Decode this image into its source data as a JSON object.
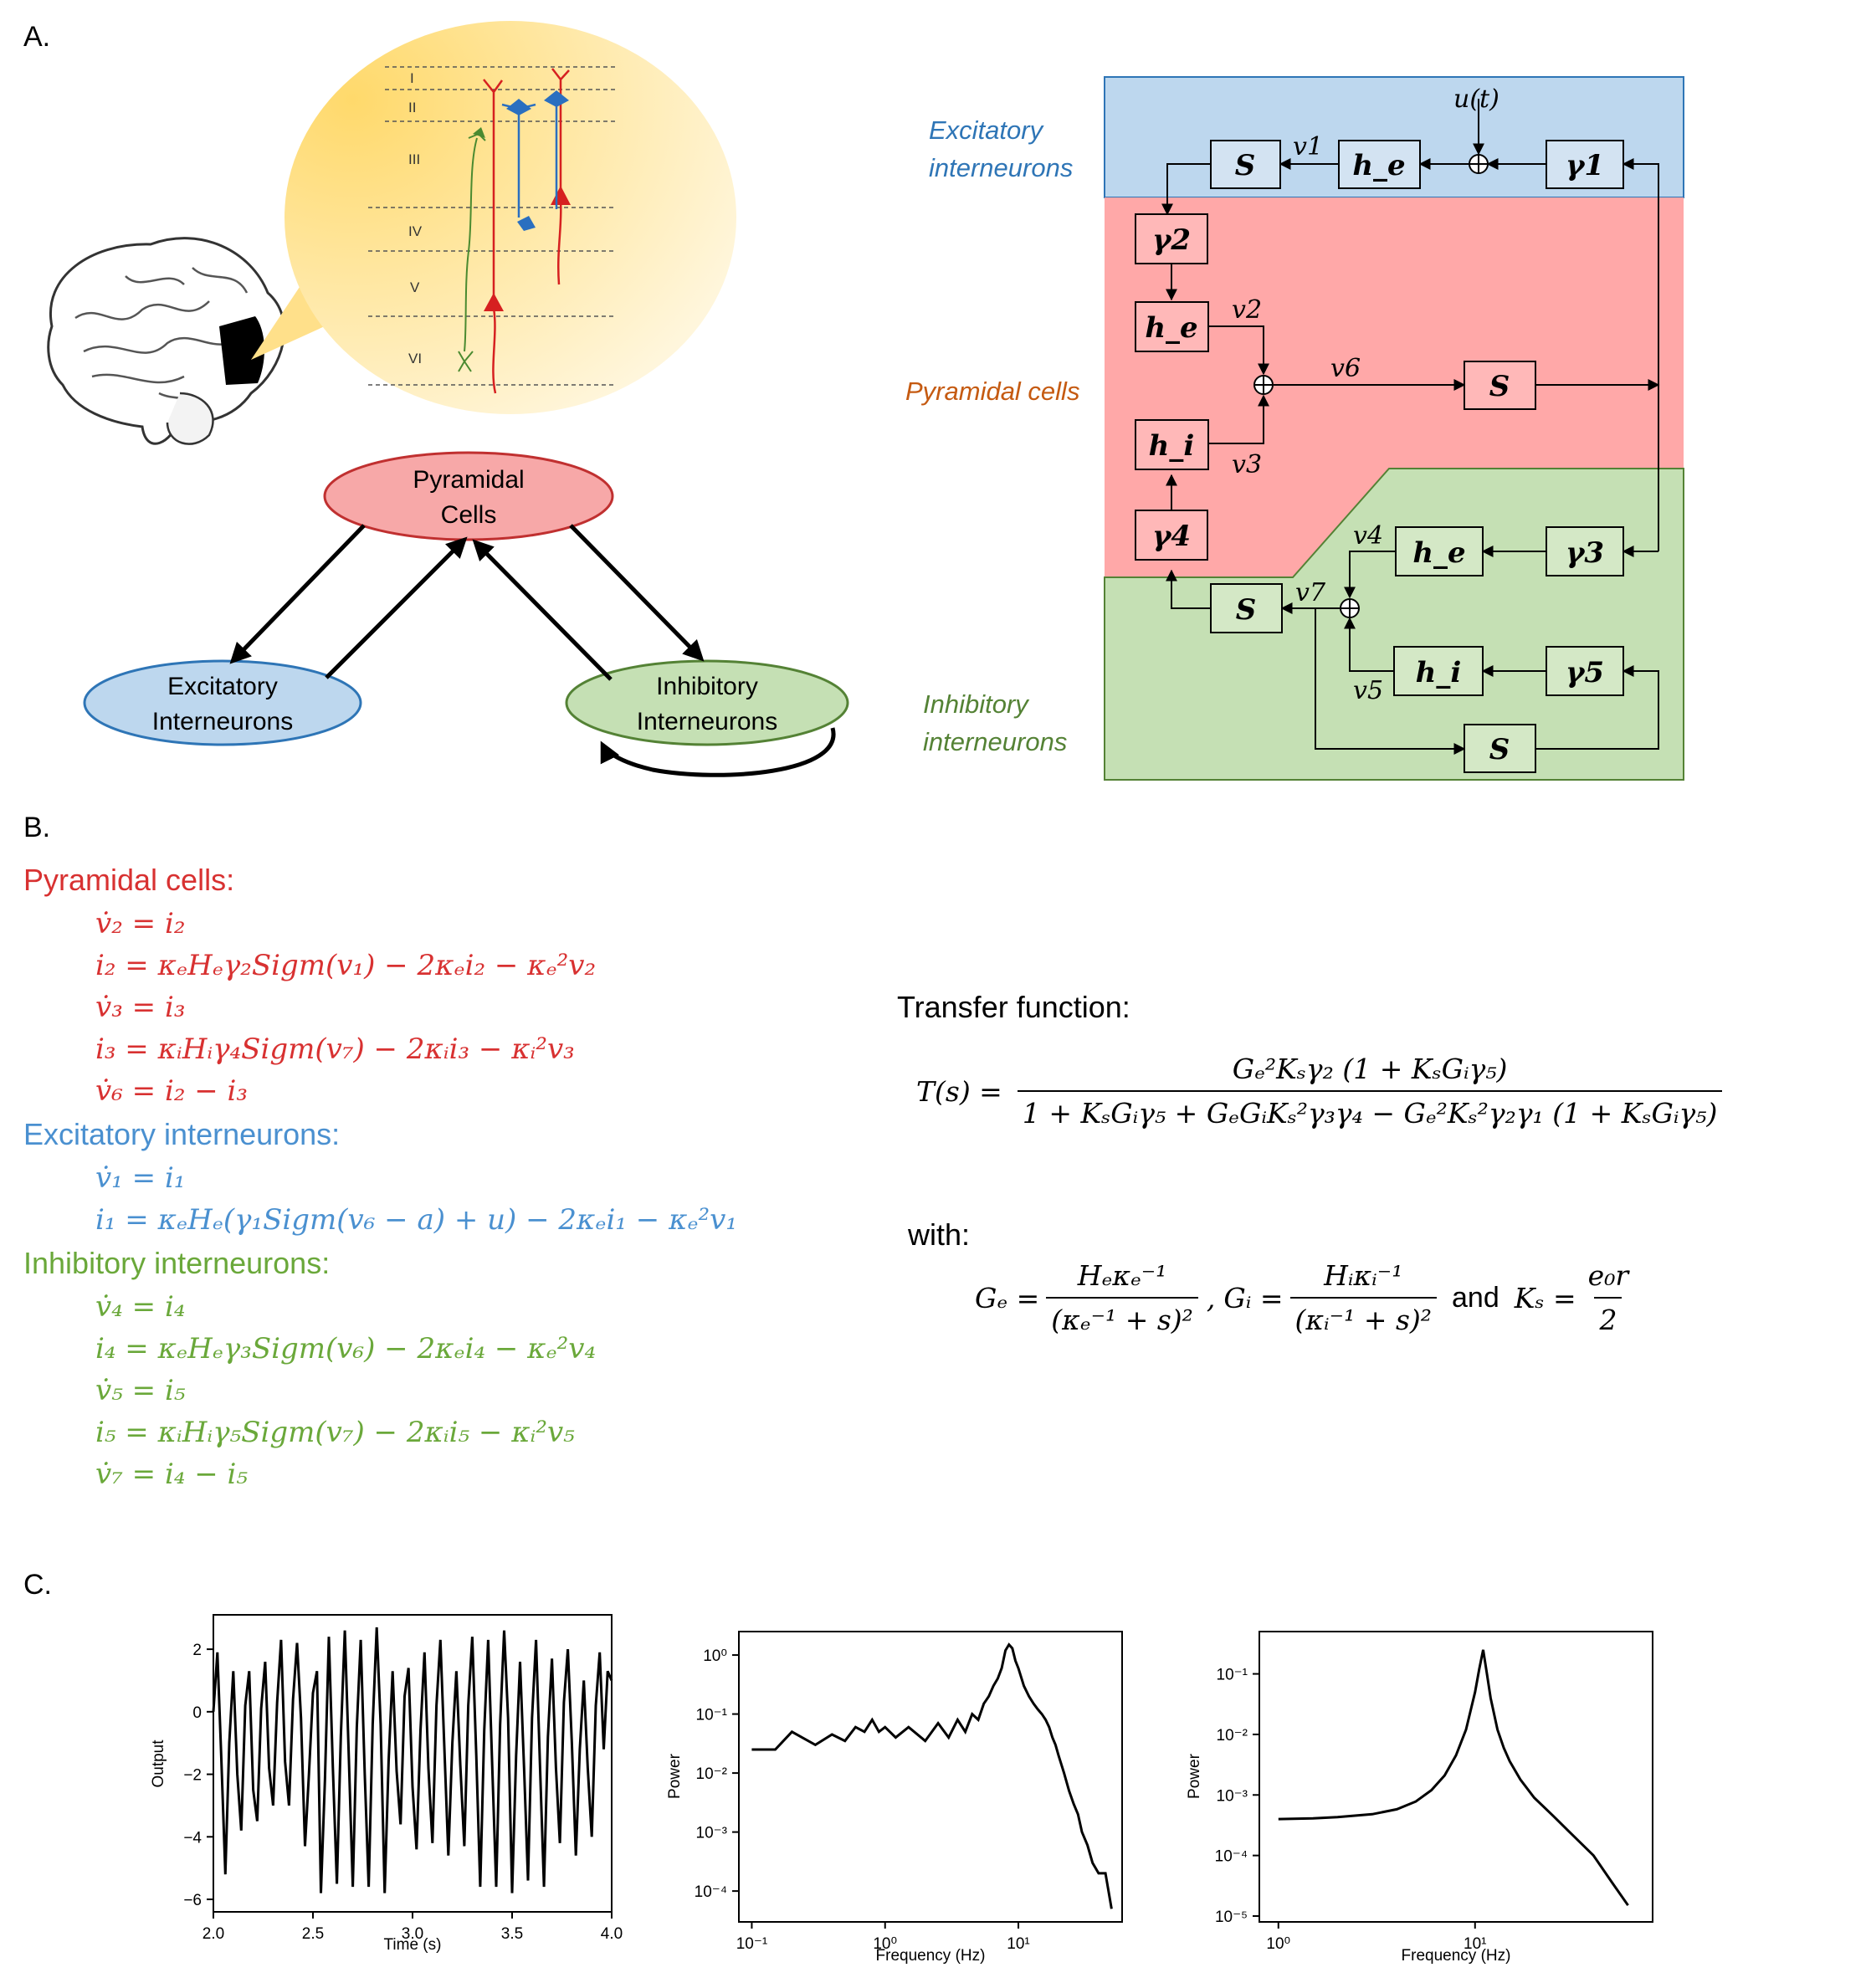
{
  "panel_labels": {
    "a": "A.",
    "b": "B.",
    "c": "C."
  },
  "cortex_layers": [
    "I",
    "II",
    "III",
    "IV",
    "V",
    "VI"
  ],
  "network": {
    "pyramidal": "Pyramidal Cells",
    "pyramidal_line1": "Pyramidal",
    "pyramidal_line2": "Cells",
    "excitatory_line1": "Excitatory",
    "excitatory_line2": "Interneurons",
    "inhibitory_line1": "Inhibitory",
    "inhibitory_line2": "Interneurons"
  },
  "block_diagram": {
    "excitatory_label_1": "Excitatory",
    "excitatory_label_2": "interneurons",
    "pyramidal_label": "Pyramidal cells",
    "inhibitory_label_1": "Inhibitory",
    "inhibitory_label_2": "interneurons",
    "input_label": "u(t)",
    "blocks": {
      "s1": "S",
      "he1": "h_e",
      "g1": "γ1",
      "g2": "γ2",
      "he2": "h_e",
      "hi1": "h_i",
      "g4": "γ4",
      "s2": "S",
      "he3": "h_e",
      "g3": "γ3",
      "s3": "S",
      "hi2": "h_i",
      "g5": "γ5",
      "s4": "S"
    },
    "signals": {
      "v1": "v1",
      "v2": "v2",
      "v3": "v3",
      "v4": "v4",
      "v5": "v5",
      "v6": "v6",
      "v7": "v7"
    },
    "colors": {
      "excitatory": "#bdd7ee",
      "pyramidal": "#ffa8a8",
      "inhibitory": "#c5e0b4"
    }
  },
  "equations": {
    "pyramidal_header": "Pyramidal cells:",
    "pyramidal": [
      "v̇₂ = i₂",
      "i₂ = κₑHₑγ₂Sigm(v₁) − 2κₑi₂ − κₑ²v₂",
      "v̇₃ = i₃",
      "i₃ = κᵢHᵢγ₄Sigm(v₇) − 2κᵢi₃ − κᵢ²v₃",
      "v̇₆ = i₂ − i₃"
    ],
    "excitatory_header": "Excitatory interneurons:",
    "excitatory": [
      "v̇₁ = i₁",
      "i₁ = κₑHₑ(γ₁Sigm(v₆ − a) + u) − 2κₑi₁ − κₑ²v₁"
    ],
    "inhibitory_header": "Inhibitory interneurons:",
    "inhibitory": [
      "v̇₄ = i₄",
      "i₄ = κₑHₑγ₃Sigm(v₆) − 2κₑi₄ − κₑ²v₄",
      "v̇₅ = i₅",
      "i₅ = κᵢHᵢγ₅Sigm(v₇) − 2κᵢi₅ − κᵢ²v₅",
      "v̇₇ = i₄ − i₅"
    ]
  },
  "transfer": {
    "label": "Transfer function:",
    "lhs": "T(s) =",
    "numerator": "Gₑ²Kₛγ₂ (1 + KₛGᵢγ₅)",
    "denominator": "1 + KₛGᵢγ₅ + GₑGᵢKₛ²γ₃γ₄ − Gₑ²Kₛ²γ₂γ₁ (1 + KₛGᵢγ₅)",
    "with_label": "with:",
    "ge_lhs": "Gₑ =",
    "ge_num": "Hₑκₑ⁻¹",
    "ge_den": "(κₑ⁻¹ + s)²",
    "gi_lhs": "Gᵢ =",
    "gi_num": "Hᵢκᵢ⁻¹",
    "gi_den": "(κᵢ⁻¹ + s)²",
    "and": "and",
    "ks_lhs": "Kₛ =",
    "ks_num": "e₀r",
    "ks_den": "2"
  },
  "chart_data": [
    {
      "type": "line",
      "xlabel": "Time (s)",
      "ylabel": "Output",
      "xlim": [
        2.0,
        4.0
      ],
      "ylim": [
        -6.4,
        3.1
      ],
      "xticks": [
        "2.0",
        "2.5",
        "3.0",
        "3.5",
        "4.0"
      ],
      "yticks": [
        "2",
        "0",
        "−2",
        "−4",
        "−6"
      ],
      "series": [
        {
          "x": [
            2.0,
            2.02,
            2.04,
            2.06,
            2.08,
            2.1,
            2.12,
            2.14,
            2.16,
            2.18,
            2.2,
            2.22,
            2.24,
            2.26,
            2.28,
            2.3,
            2.32,
            2.34,
            2.36,
            2.38,
            2.4,
            2.42,
            2.44,
            2.46,
            2.48,
            2.5,
            2.52,
            2.54,
            2.56,
            2.58,
            2.6,
            2.62,
            2.64,
            2.66,
            2.68,
            2.7,
            2.72,
            2.74,
            2.76,
            2.78,
            2.8,
            2.82,
            2.84,
            2.86,
            2.88,
            2.9,
            2.92,
            2.94,
            2.96,
            2.98,
            3.0,
            3.02,
            3.04,
            3.06,
            3.08,
            3.1,
            3.12,
            3.14,
            3.16,
            3.18,
            3.2,
            3.22,
            3.24,
            3.26,
            3.28,
            3.3,
            3.32,
            3.34,
            3.36,
            3.38,
            3.4,
            3.42,
            3.44,
            3.46,
            3.48,
            3.5,
            3.52,
            3.54,
            3.56,
            3.58,
            3.6,
            3.62,
            3.64,
            3.66,
            3.68,
            3.7,
            3.72,
            3.74,
            3.76,
            3.78,
            3.8,
            3.82,
            3.84,
            3.86,
            3.88,
            3.9,
            3.92,
            3.94,
            3.96,
            3.98,
            4.0
          ],
          "y": [
            0.0,
            1.9,
            -1.5,
            -5.2,
            -1.0,
            1.3,
            -2.0,
            -3.8,
            0.2,
            1.3,
            -2.5,
            -3.5,
            0.1,
            1.6,
            -1.8,
            -3.0,
            0.3,
            2.3,
            -1.6,
            -3.0,
            0.4,
            2.2,
            -0.2,
            -4.3,
            -2.0,
            0.6,
            1.3,
            -5.8,
            -2.2,
            2.4,
            -1.8,
            -5.5,
            -0.8,
            2.6,
            -1.4,
            -5.6,
            -0.5,
            2.3,
            -2.0,
            -5.6,
            -0.4,
            2.7,
            -0.4,
            -5.8,
            -1.6,
            1.3,
            -1.9,
            -3.6,
            0.5,
            1.4,
            -2.4,
            -4.4,
            -0.6,
            1.9,
            -1.8,
            -4.2,
            0.2,
            2.3,
            -1.2,
            -4.6,
            -1.0,
            1.3,
            -1.7,
            -4.3,
            0.2,
            2.4,
            -1.4,
            -5.6,
            -0.6,
            2.3,
            -1.7,
            -5.6,
            -0.4,
            2.6,
            -0.2,
            -5.8,
            -1.4,
            1.6,
            -1.8,
            -5.4,
            -0.2,
            2.3,
            -1.7,
            -5.6,
            -0.8,
            1.7,
            -1.8,
            -4.2,
            0.3,
            2.0,
            -1.0,
            -4.6,
            -1.2,
            1.0,
            -1.8,
            -4.0,
            0.2,
            1.9,
            -1.2,
            1.3,
            1.0
          ]
        }
      ]
    },
    {
      "type": "line",
      "xlabel": "Frequency (Hz)",
      "ylabel": "Power",
      "xscale": "log",
      "yscale": "log",
      "xlim": [
        0.08,
        60
      ],
      "ylim": [
        3e-05,
        2.5
      ],
      "xticks": [
        "10⁻¹",
        "10⁰",
        "10¹"
      ],
      "yticks": [
        "10⁰",
        "10⁻¹",
        "10⁻²",
        "10⁻³",
        "10⁻⁴"
      ],
      "series": [
        {
          "x": [
            0.1,
            0.15,
            0.2,
            0.3,
            0.4,
            0.5,
            0.6,
            0.7,
            0.8,
            0.9,
            1.0,
            1.2,
            1.5,
            2.0,
            2.5,
            3.0,
            3.5,
            4.0,
            4.5,
            5.0,
            5.5,
            6.0,
            6.5,
            7.0,
            7.5,
            8.0,
            8.5,
            9.0,
            9.5,
            10.0,
            11.0,
            12.0,
            13.0,
            14.0,
            15.0,
            16.0,
            17.0,
            18.0,
            19.0,
            20.0,
            22.0,
            24.0,
            26.0,
            28.0,
            30.0,
            33.0,
            36.0,
            40.0,
            45.0,
            50.0
          ],
          "y": [
            0.025,
            0.025,
            0.05,
            0.03,
            0.045,
            0.035,
            0.06,
            0.05,
            0.08,
            0.05,
            0.06,
            0.04,
            0.06,
            0.035,
            0.07,
            0.04,
            0.08,
            0.05,
            0.1,
            0.08,
            0.15,
            0.2,
            0.3,
            0.4,
            0.6,
            1.2,
            1.5,
            1.3,
            0.8,
            0.6,
            0.3,
            0.2,
            0.15,
            0.12,
            0.1,
            0.08,
            0.06,
            0.04,
            0.03,
            0.02,
            0.01,
            0.005,
            0.003,
            0.002,
            0.001,
            0.0006,
            0.0003,
            0.0002,
            0.0002,
            5e-05
          ]
        }
      ]
    },
    {
      "type": "line",
      "xlabel": "Frequency (Hz)",
      "ylabel": "Power",
      "xscale": "log",
      "yscale": "log",
      "xlim": [
        0.8,
        80
      ],
      "ylim": [
        8e-06,
        0.5
      ],
      "xticks": [
        "10⁰",
        "10¹"
      ],
      "yticks": [
        "10⁻¹",
        "10⁻²",
        "10⁻³",
        "10⁻⁴",
        "10⁻⁵"
      ],
      "series": [
        {
          "x": [
            1.0,
            1.5,
            2.0,
            3.0,
            4.0,
            5.0,
            6.0,
            7.0,
            8.0,
            9.0,
            10.0,
            10.5,
            11.0,
            11.5,
            12.0,
            13.0,
            14.0,
            15.0,
            17.0,
            20.0,
            25.0,
            30.0,
            40.0,
            50.0,
            60.0
          ],
          "y": [
            0.0004,
            0.00041,
            0.00043,
            0.00048,
            0.00058,
            0.00078,
            0.0012,
            0.0021,
            0.0045,
            0.012,
            0.05,
            0.12,
            0.25,
            0.1,
            0.04,
            0.012,
            0.006,
            0.0036,
            0.0018,
            0.0009,
            0.00045,
            0.00025,
            0.0001,
            3.5e-05,
            1.5e-05
          ]
        }
      ]
    }
  ]
}
